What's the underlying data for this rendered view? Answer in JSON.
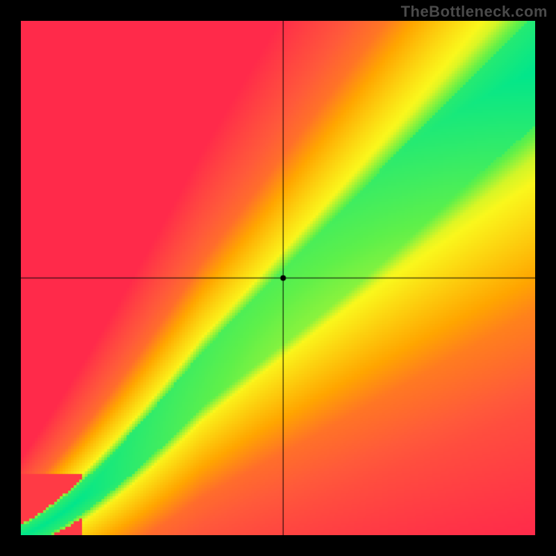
{
  "watermark": {
    "text": "TheBottleneck.com",
    "color": "#4a4a4a",
    "fontsize": 22,
    "fontweight": "bold"
  },
  "chart": {
    "type": "heatmap",
    "canvas_size": 740,
    "grid_resolution": 185,
    "background_color": "#000000",
    "crosshair": {
      "x_normalized": 0.51,
      "y_normalized": 0.5,
      "line_color": "#000000",
      "line_width": 1,
      "dot_radius": 4,
      "dot_color": "#000000"
    },
    "diagonal_band": {
      "center_color": "#00e68c",
      "inner_color": "#faf71c",
      "mid_color": "#ffa500",
      "outer_color": "#ff2a4a",
      "origin_x": 0.0,
      "origin_y": 0.0,
      "base_slope": 0.86,
      "curve_exponent_low": 1.32,
      "curve_breakpoint": 0.35,
      "half_width_min": 0.018,
      "half_width_max": 0.11,
      "yellow_ratio": 0.55,
      "orange_ratio": 2.7
    },
    "corner_falloff": {
      "top_left_color": "#ff2a4a",
      "bottom_right_color": "#ff2a4a",
      "yellow_zone_factor": 0.95
    },
    "color_stops": [
      {
        "t": 0.0,
        "hex": "#00e68c"
      },
      {
        "t": 0.2,
        "hex": "#5ef04a"
      },
      {
        "t": 0.4,
        "hex": "#faf71c"
      },
      {
        "t": 0.65,
        "hex": "#ffa500"
      },
      {
        "t": 0.85,
        "hex": "#ff5a3a"
      },
      {
        "t": 1.0,
        "hex": "#ff2a4a"
      }
    ]
  }
}
